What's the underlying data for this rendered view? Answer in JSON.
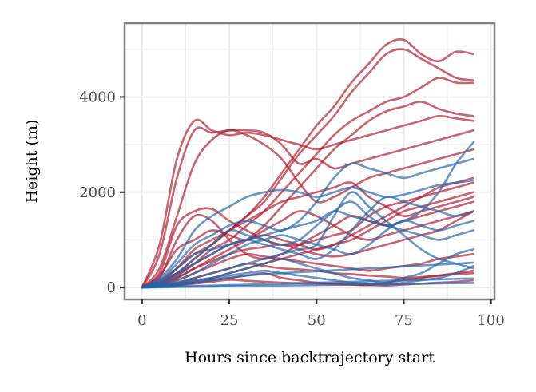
{
  "chart_data": {
    "type": "line",
    "title": "",
    "xlabel": "Hours since backtrajectory start",
    "ylabel": "Height (m)",
    "xlim": [
      -5,
      101
    ],
    "ylim": [
      -250,
      5550
    ],
    "x_ticks": [
      0,
      25,
      50,
      75,
      100
    ],
    "x_tick_labels": [
      "0",
      "25",
      "50",
      "75",
      "100"
    ],
    "y_ticks": [
      0,
      2000,
      4000
    ],
    "y_tick_labels": [
      "0",
      "2000",
      "4000"
    ],
    "grid": true,
    "legend": "none",
    "colors": {
      "red": "#b2182b",
      "blue": "#2166ac",
      "panel_border": "#7f7f7f",
      "grid": "#ebebeb"
    },
    "x": [
      0,
      5,
      10,
      15,
      20,
      25,
      30,
      35,
      40,
      45,
      50,
      55,
      60,
      65,
      70,
      75,
      80,
      85,
      90,
      95
    ],
    "series": [
      {
        "color": "red",
        "values": [
          0,
          900,
          2700,
          3500,
          3300,
          3200,
          3250,
          3200,
          3100,
          3000,
          2900,
          3000,
          3100,
          3200,
          3300,
          3400,
          3500,
          3600,
          3550,
          3500
        ]
      },
      {
        "color": "red",
        "values": [
          0,
          700,
          2300,
          3300,
          3250,
          3300,
          3300,
          3250,
          3000,
          2600,
          2700,
          2500,
          2600,
          2700,
          2800,
          2900,
          3000,
          3100,
          3200,
          3300
        ]
      },
      {
        "color": "red",
        "values": [
          0,
          400,
          1500,
          2600,
          3100,
          3300,
          3200,
          3000,
          2700,
          2200,
          1800,
          1900,
          2100,
          2300,
          2400,
          2500,
          2600,
          2700,
          2800,
          2900
        ]
      },
      {
        "color": "red",
        "values": [
          0,
          150,
          400,
          700,
          900,
          1200,
          1500,
          1900,
          2400,
          2900,
          3400,
          3800,
          4300,
          4700,
          5100,
          5200,
          4900,
          4750,
          4950,
          4900
        ]
      },
      {
        "color": "red",
        "values": [
          0,
          100,
          300,
          600,
          900,
          1200,
          1500,
          1800,
          2300,
          2800,
          3200,
          3600,
          4100,
          4500,
          4900,
          5000,
          4800,
          4600,
          4400,
          4350
        ]
      },
      {
        "color": "red",
        "values": [
          0,
          100,
          250,
          500,
          800,
          1000,
          1300,
          1600,
          2000,
          2400,
          2800,
          3200,
          3500,
          3700,
          3900,
          4000,
          4200,
          4400,
          4300,
          4300
        ]
      },
      {
        "color": "red",
        "values": [
          0,
          50,
          200,
          400,
          600,
          800,
          1000,
          1300,
          1700,
          2100,
          2500,
          2900,
          3200,
          3500,
          3700,
          3800,
          3900,
          3750,
          3650,
          3600
        ]
      },
      {
        "color": "red",
        "values": [
          0,
          300,
          1300,
          1600,
          1650,
          1400,
          1200,
          1000,
          900,
          900,
          1000,
          1100,
          1200,
          1500,
          1700,
          1800,
          1900,
          2000,
          2100,
          2200
        ]
      },
      {
        "color": "red",
        "values": [
          0,
          200,
          1000,
          1500,
          1400,
          1000,
          700,
          600,
          700,
          900,
          1100,
          1300,
          1500,
          1400,
          1300,
          1400,
          1500,
          1600,
          1700,
          1800
        ]
      },
      {
        "color": "red",
        "values": [
          0,
          100,
          300,
          500,
          700,
          900,
          1000,
          1100,
          1000,
          900,
          800,
          900,
          1100,
          1300,
          1500,
          1700,
          1900,
          2100,
          2200,
          2300
        ]
      },
      {
        "color": "red",
        "values": [
          0,
          80,
          200,
          400,
          550,
          700,
          800,
          850,
          900,
          800,
          700,
          650,
          700,
          800,
          900,
          1000,
          1100,
          1200,
          1400,
          1600
        ]
      },
      {
        "color": "red",
        "values": [
          0,
          60,
          150,
          300,
          450,
          600,
          700,
          650,
          600,
          550,
          500,
          450,
          400,
          350,
          400,
          450,
          500,
          600,
          650,
          700
        ]
      },
      {
        "color": "red",
        "values": [
          0,
          40,
          100,
          200,
          300,
          400,
          500,
          450,
          400,
          380,
          350,
          300,
          280,
          250,
          230,
          200,
          220,
          250,
          280,
          300
        ]
      },
      {
        "color": "red",
        "values": [
          0,
          30,
          80,
          150,
          200,
          300,
          400,
          500,
          600,
          700,
          800,
          900,
          1000,
          1200,
          1400,
          1600,
          1700,
          1800,
          1900,
          2000
        ]
      },
      {
        "color": "red",
        "values": [
          0,
          20,
          50,
          100,
          150,
          200,
          250,
          300,
          200,
          150,
          100,
          80,
          60,
          50,
          100,
          150,
          200,
          250,
          300,
          350
        ]
      },
      {
        "color": "red",
        "values": [
          0,
          15,
          40,
          80,
          120,
          160,
          140,
          120,
          100,
          90,
          80,
          70,
          60,
          50,
          40,
          60,
          80,
          100,
          120,
          150
        ]
      },
      {
        "color": "red",
        "values": [
          0,
          250,
          800,
          1000,
          1200,
          1100,
          1000,
          1200,
          1400,
          1600,
          1500,
          1300,
          1100,
          1000,
          1100,
          1200,
          1300,
          1400,
          1500,
          1600
        ]
      },
      {
        "color": "red",
        "values": [
          0,
          100,
          400,
          800,
          1000,
          1200,
          1400,
          1600,
          1800,
          1900,
          2000,
          2100,
          2200,
          1900,
          1700,
          1500,
          1600,
          1700,
          1800,
          1900
        ]
      },
      {
        "color": "blue",
        "values": [
          0,
          200,
          600,
          1200,
          1500,
          1700,
          1900,
          2000,
          2050,
          2000,
          1900,
          2000,
          2100,
          2000,
          1900,
          1950,
          2050,
          2150,
          2200,
          2250
        ]
      },
      {
        "color": "blue",
        "values": [
          0,
          150,
          500,
          900,
          1100,
          1300,
          1400,
          1300,
          1200,
          1400,
          1800,
          2300,
          2600,
          2500,
          2400,
          2300,
          2400,
          2500,
          2600,
          2700
        ]
      },
      {
        "color": "blue",
        "values": [
          0,
          100,
          300,
          600,
          900,
          1200,
          1100,
          1000,
          900,
          1000,
          1300,
          1600,
          1800,
          1500,
          1300,
          1400,
          1600,
          2000,
          2600,
          3050
        ]
      },
      {
        "color": "blue",
        "values": [
          0,
          80,
          250,
          500,
          700,
          900,
          1000,
          1100,
          1200,
          1300,
          1400,
          1600,
          1500,
          1400,
          1300,
          1200,
          1100,
          1000,
          1100,
          1200
        ]
      },
      {
        "color": "blue",
        "values": [
          0,
          60,
          150,
          300,
          500,
          700,
          900,
          1000,
          1100,
          1000,
          900,
          800,
          700,
          900,
          1200,
          1400,
          1300,
          1200,
          1300,
          1400
        ]
      },
      {
        "color": "blue",
        "values": [
          0,
          40,
          100,
          200,
          300,
          400,
          500,
          600,
          700,
          800,
          900,
          1500,
          2000,
          1700,
          1400,
          1100,
          800,
          600,
          500,
          400
        ]
      },
      {
        "color": "blue",
        "values": [
          0,
          30,
          80,
          150,
          200,
          300,
          400,
          500,
          600,
          500,
          400,
          300,
          200,
          150,
          100,
          200,
          300,
          500,
          700,
          800
        ]
      },
      {
        "color": "blue",
        "values": [
          0,
          25,
          60,
          120,
          180,
          250,
          300,
          350,
          300,
          250,
          200,
          150,
          100,
          80,
          60,
          100,
          150,
          200,
          300,
          450
        ]
      },
      {
        "color": "blue",
        "values": [
          0,
          20,
          50,
          100,
          150,
          200,
          250,
          280,
          300,
          320,
          340,
          360,
          380,
          400,
          420,
          440,
          460,
          480,
          500,
          520
        ]
      },
      {
        "color": "blue",
        "values": [
          0,
          10,
          20,
          30,
          40,
          50,
          60,
          70,
          80,
          90,
          100,
          110,
          120,
          130,
          140,
          150,
          160,
          170,
          180,
          190
        ]
      },
      {
        "color": "blue",
        "values": [
          0,
          5,
          10,
          15,
          20,
          25,
          30,
          35,
          40,
          45,
          50,
          55,
          60,
          65,
          70,
          75,
          80,
          85,
          90,
          95
        ]
      },
      {
        "color": "blue",
        "values": [
          0,
          100,
          400,
          700,
          800,
          900,
          1000,
          900,
          800,
          700,
          600,
          800,
          1200,
          1600,
          1900,
          1800,
          1700,
          1600,
          1500,
          1600
        ]
      }
    ]
  }
}
